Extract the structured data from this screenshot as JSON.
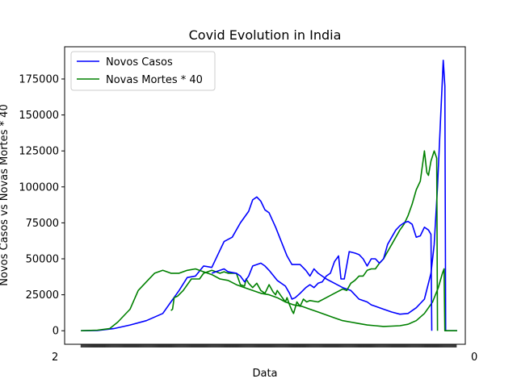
{
  "chart_data": {
    "type": "line",
    "title": "Covid Evolution in India",
    "xlabel": "Data",
    "ylabel": "Novos Casos vs Novas Mortes * 40",
    "ylim": [
      -9400,
      197400
    ],
    "yticks": [
      0,
      25000,
      50000,
      75000,
      100000,
      125000,
      150000,
      175000
    ],
    "ytick_labels": [
      "0",
      "25000",
      "50000",
      "75000",
      "100000",
      "125000",
      "150000",
      "175000"
    ],
    "xlim": [
      -20,
      470
    ],
    "x_tick_count": 460,
    "x_tick_label_left": "2",
    "x_tick_label_right": "0",
    "legend": "upper-left",
    "grid": false,
    "series": [
      {
        "name": "Novos Casos",
        "color": "#0000ff",
        "points": [
          [
            0,
            0
          ],
          [
            20,
            200
          ],
          [
            40,
            1500
          ],
          [
            60,
            4000
          ],
          [
            80,
            7000
          ],
          [
            100,
            12000
          ],
          [
            110,
            20000
          ],
          [
            120,
            28000
          ],
          [
            130,
            37000
          ],
          [
            140,
            38000
          ],
          [
            150,
            45000
          ],
          [
            160,
            44000
          ],
          [
            170,
            56000
          ],
          [
            175,
            62000
          ],
          [
            185,
            65000
          ],
          [
            195,
            75000
          ],
          [
            205,
            83000
          ],
          [
            210,
            91000
          ],
          [
            215,
            93000
          ],
          [
            220,
            90000
          ],
          [
            225,
            84000
          ],
          [
            230,
            82000
          ],
          [
            238,
            72000
          ],
          [
            245,
            62000
          ],
          [
            252,
            52000
          ],
          [
            258,
            46000
          ],
          [
            268,
            46000
          ],
          [
            275,
            42000
          ],
          [
            280,
            38000
          ],
          [
            285,
            43000
          ],
          [
            290,
            40000
          ],
          [
            300,
            36000
          ],
          [
            310,
            33000
          ],
          [
            320,
            30000
          ],
          [
            330,
            28000
          ],
          [
            335,
            25000
          ],
          [
            340,
            22000
          ],
          [
            350,
            20000
          ],
          [
            355,
            18000
          ],
          [
            360,
            17000
          ],
          [
            370,
            15000
          ],
          [
            380,
            13000
          ],
          [
            390,
            11500
          ],
          [
            400,
            12000
          ],
          [
            410,
            16000
          ],
          [
            420,
            22000
          ],
          [
            428,
            40000
          ],
          [
            432,
            60000
          ],
          [
            436,
            100000
          ],
          [
            440,
            150000
          ],
          [
            443,
            188000
          ],
          [
            445,
            170000
          ],
          [
            446,
            0
          ],
          [
            460,
            0
          ]
        ]
      },
      {
        "name": "Novas Mortes * 40",
        "color": "#008000",
        "points": [
          [
            0,
            0
          ],
          [
            20,
            400
          ],
          [
            35,
            1500
          ],
          [
            45,
            6000
          ],
          [
            60,
            15000
          ],
          [
            70,
            28000
          ],
          [
            80,
            34000
          ],
          [
            90,
            40000
          ],
          [
            100,
            42000
          ],
          [
            110,
            40000
          ],
          [
            120,
            40000
          ],
          [
            130,
            42000
          ],
          [
            140,
            43000
          ],
          [
            150,
            41000
          ],
          [
            160,
            39000
          ],
          [
            170,
            36000
          ],
          [
            180,
            35000
          ],
          [
            190,
            32000
          ],
          [
            200,
            30000
          ],
          [
            210,
            28000
          ],
          [
            220,
            26000
          ],
          [
            230,
            25000
          ],
          [
            240,
            23000
          ],
          [
            250,
            20000
          ],
          [
            260,
            18000
          ],
          [
            270,
            17000
          ],
          [
            280,
            15000
          ],
          [
            290,
            13000
          ],
          [
            300,
            11000
          ],
          [
            310,
            9000
          ],
          [
            320,
            7000
          ],
          [
            330,
            6000
          ],
          [
            340,
            5000
          ],
          [
            350,
            4000
          ],
          [
            360,
            3500
          ],
          [
            370,
            3000
          ],
          [
            380,
            3200
          ],
          [
            390,
            3500
          ],
          [
            400,
            4500
          ],
          [
            410,
            7000
          ],
          [
            420,
            12000
          ],
          [
            430,
            20000
          ],
          [
            437,
            30000
          ],
          [
            442,
            40000
          ],
          [
            444,
            43000
          ],
          [
            445,
            0
          ],
          [
            460,
            0
          ]
        ]
      },
      {
        "name": "",
        "color": "#008000",
        "points": [
          [
            110,
            14000
          ],
          [
            112,
            15000
          ],
          [
            114,
            23000
          ],
          [
            118,
            24000
          ],
          [
            125,
            28000
          ],
          [
            135,
            36000
          ],
          [
            145,
            36000
          ],
          [
            150,
            40000
          ],
          [
            160,
            42000
          ],
          [
            170,
            40000
          ],
          [
            175,
            41000
          ],
          [
            180,
            40000
          ],
          [
            190,
            40000
          ],
          [
            195,
            32000
          ],
          [
            200,
            31000
          ],
          [
            202,
            36000
          ],
          [
            205,
            33000
          ],
          [
            210,
            30000
          ],
          [
            215,
            33000
          ],
          [
            220,
            28000
          ],
          [
            225,
            26000
          ],
          [
            230,
            32000
          ],
          [
            235,
            27000
          ],
          [
            238,
            25000
          ],
          [
            240,
            28000
          ],
          [
            245,
            24000
          ],
          [
            250,
            20000
          ],
          [
            252,
            23000
          ],
          [
            255,
            18000
          ],
          [
            258,
            14000
          ],
          [
            260,
            12000
          ],
          [
            264,
            20000
          ],
          [
            268,
            17000
          ],
          [
            272,
            22000
          ],
          [
            276,
            20000
          ],
          [
            280,
            21000
          ],
          [
            290,
            20000
          ],
          [
            300,
            23000
          ],
          [
            310,
            26000
          ],
          [
            320,
            29000
          ],
          [
            325,
            28000
          ],
          [
            330,
            33000
          ],
          [
            335,
            35000
          ],
          [
            340,
            38000
          ],
          [
            345,
            38000
          ],
          [
            350,
            42000
          ],
          [
            355,
            43000
          ],
          [
            360,
            43000
          ],
          [
            365,
            47000
          ],
          [
            370,
            50000
          ],
          [
            375,
            55000
          ],
          [
            380,
            60000
          ],
          [
            385,
            65000
          ],
          [
            390,
            70000
          ],
          [
            395,
            74000
          ],
          [
            400,
            80000
          ],
          [
            405,
            88000
          ],
          [
            410,
            98000
          ],
          [
            415,
            104000
          ],
          [
            420,
            125000
          ],
          [
            423,
            110000
          ],
          [
            425,
            108000
          ],
          [
            428,
            118000
          ],
          [
            432,
            125000
          ],
          [
            435,
            120000
          ],
          [
            436,
            0
          ]
        ]
      },
      {
        "name": "",
        "color": "#0000ff",
        "points": [
          [
            160,
            40000
          ],
          [
            170,
            42000
          ],
          [
            175,
            43000
          ],
          [
            180,
            41000
          ],
          [
            190,
            40000
          ],
          [
            195,
            38000
          ],
          [
            200,
            34000
          ],
          [
            205,
            38000
          ],
          [
            210,
            45000
          ],
          [
            215,
            46000
          ],
          [
            220,
            47000
          ],
          [
            225,
            45000
          ],
          [
            230,
            42000
          ],
          [
            240,
            35000
          ],
          [
            250,
            31000
          ],
          [
            255,
            26000
          ],
          [
            258,
            22000
          ],
          [
            262,
            23000
          ],
          [
            268,
            26000
          ],
          [
            275,
            30000
          ],
          [
            280,
            32000
          ],
          [
            285,
            30000
          ],
          [
            290,
            33000
          ],
          [
            295,
            34000
          ],
          [
            300,
            38000
          ],
          [
            305,
            40000
          ],
          [
            310,
            48000
          ],
          [
            315,
            52000
          ],
          [
            318,
            36000
          ],
          [
            322,
            36000
          ],
          [
            328,
            55000
          ],
          [
            335,
            54000
          ],
          [
            340,
            53000
          ],
          [
            345,
            50000
          ],
          [
            350,
            45000
          ],
          [
            355,
            50000
          ],
          [
            360,
            50000
          ],
          [
            365,
            47000
          ],
          [
            370,
            50000
          ],
          [
            375,
            60000
          ],
          [
            380,
            65000
          ],
          [
            385,
            70000
          ],
          [
            390,
            73000
          ],
          [
            395,
            75000
          ],
          [
            400,
            76000
          ],
          [
            405,
            74000
          ],
          [
            410,
            65000
          ],
          [
            415,
            66000
          ],
          [
            420,
            72000
          ],
          [
            425,
            70000
          ],
          [
            428,
            67000
          ],
          [
            429,
            0
          ]
        ]
      }
    ]
  }
}
